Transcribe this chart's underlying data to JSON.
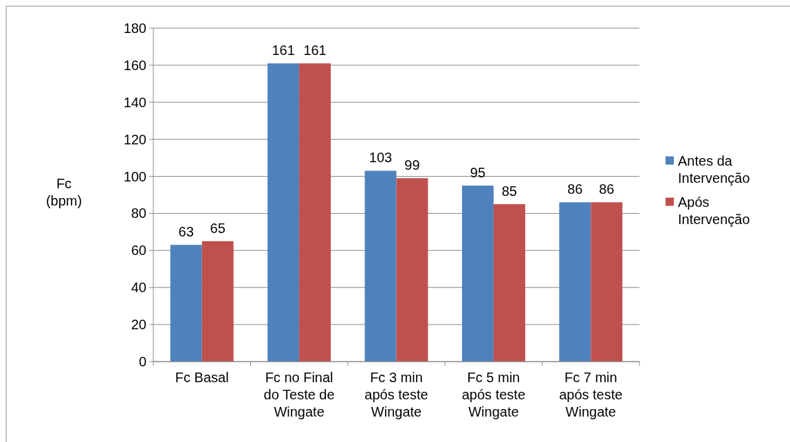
{
  "chart_data": {
    "type": "bar",
    "ylabel": "Fc (bpm)",
    "categories": [
      "Fc Basal",
      "Fc no Final do Teste de Wingate",
      "Fc 3 min após teste Wingate",
      "Fc 5 min após teste Wingate",
      "Fc 7 min após teste Wingate"
    ],
    "series": [
      {
        "name": "Antes da Intervenção",
        "color": "#4f81bd",
        "values": [
          63,
          161,
          103,
          95,
          86
        ]
      },
      {
        "name": "Após Intervenção",
        "color": "#c0504d",
        "values": [
          65,
          161,
          99,
          85,
          86
        ]
      }
    ],
    "ylim": [
      0,
      180
    ],
    "yticks": [
      0,
      20,
      40,
      60,
      80,
      100,
      120,
      140,
      160,
      180
    ],
    "grid": "y",
    "legend": "right",
    "data_labels": true
  }
}
